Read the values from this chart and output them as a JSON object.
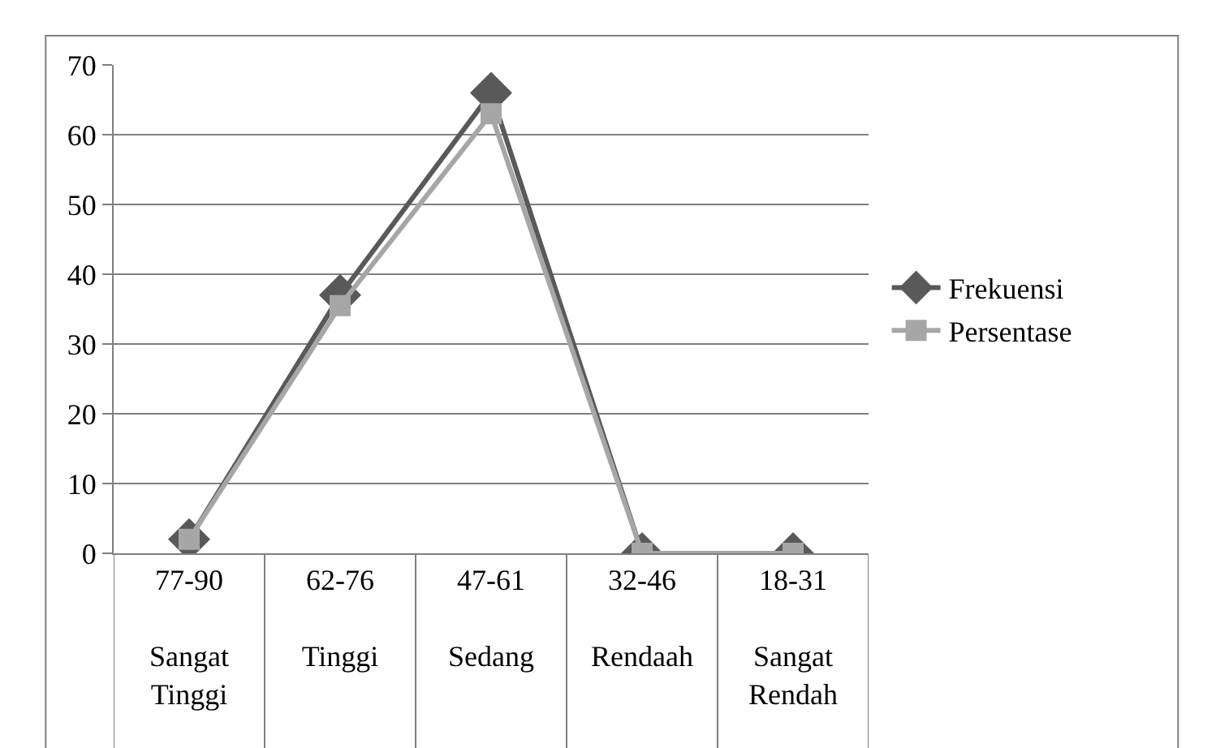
{
  "chart_data": {
    "type": "line",
    "categories": [
      "77-90\nSangat Tinggi",
      "62-76\nTinggi",
      "47-61\nSedang",
      "32-46\nRendaah",
      "18-31\nSangat Rendah"
    ],
    "series": [
      {
        "name": "Frekuensi",
        "color": "#595959",
        "marker": "diamond",
        "values": [
          2,
          37,
          66,
          0,
          0
        ]
      },
      {
        "name": "Persentase",
        "color": "#a6a6a6",
        "marker": "square",
        "values": [
          2,
          35.5,
          63,
          0,
          0
        ]
      }
    ],
    "ylim": [
      0,
      70
    ],
    "yticks": [
      0,
      10,
      20,
      30,
      40,
      50,
      60,
      70
    ],
    "grid": "y",
    "legend": "right",
    "line_style": "solid"
  }
}
